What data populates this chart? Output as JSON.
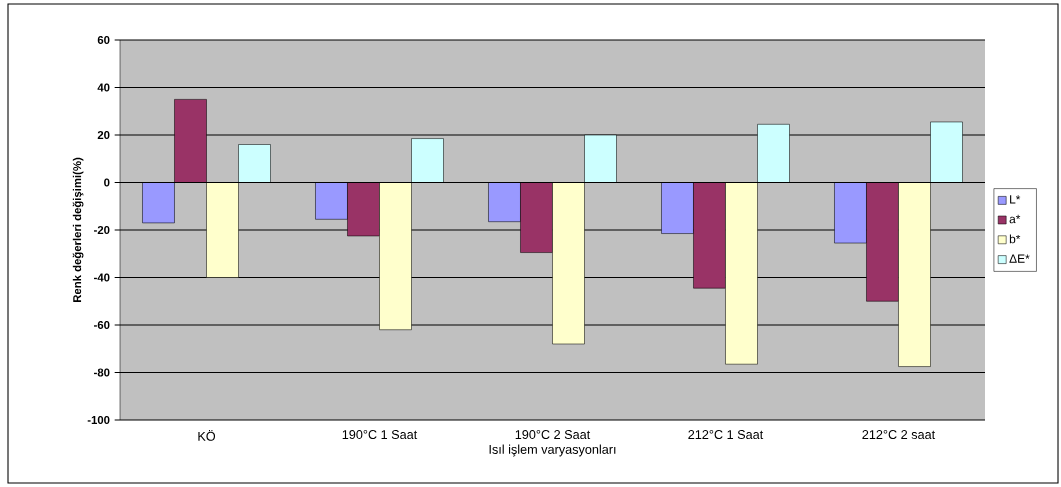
{
  "chart_data": {
    "type": "bar",
    "xlabel": "Isıl işlem varyasyonları",
    "ylabel": "Renk değerleri değişimi(%)",
    "categories": [
      "KÖ",
      "190°C 1 Saat",
      "190°C 2 Saat",
      "212°C 1 Saat",
      "212°C 2 saat"
    ],
    "series": [
      {
        "name": "L*",
        "color": "#9999ff",
        "values": [
          -17,
          -15.5,
          -16.5,
          -21.5,
          -25.5
        ]
      },
      {
        "name": "a*",
        "color": "#993366",
        "values": [
          35,
          -22.5,
          -29.5,
          -44.5,
          -50
        ]
      },
      {
        "name": "b*",
        "color": "#ffffcc",
        "values": [
          -40,
          -62,
          -68,
          -76.5,
          -77.5
        ]
      },
      {
        "name": "ΔE*",
        "color": "#ccffff",
        "values": [
          16,
          18.5,
          20,
          24.5,
          25.5
        ]
      }
    ],
    "ylim": [
      -100,
      60
    ],
    "yticks": [
      -100,
      -80,
      -60,
      -40,
      -20,
      0,
      20,
      40,
      60
    ],
    "grid": "y",
    "legend": "right"
  }
}
